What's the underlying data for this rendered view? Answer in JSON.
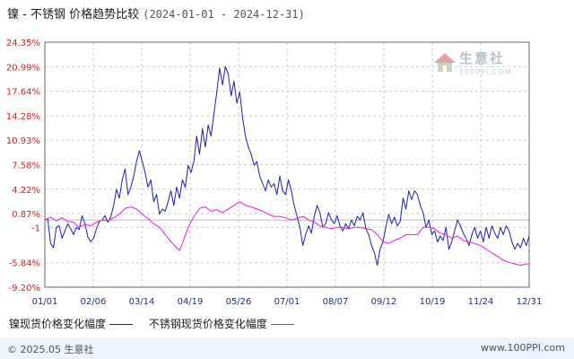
{
  "title": {
    "main": "镍 - 不锈钢 价格趋势比较",
    "range": "(2024-01-01 - 2024-12-31)"
  },
  "footer": {
    "copyright": "© 2025.05 生意社",
    "url": "www.100PPI.com"
  },
  "watermark": {
    "name": "生意社",
    "sub": "100PPI.COM"
  },
  "colors": {
    "nickel": "#1e1eaa",
    "stainless": "#e020e0",
    "grid": "#c9c9c9",
    "axis": "#666666"
  },
  "chart_data": {
    "type": "line",
    "x_ticks": [
      "01/01",
      "02/06",
      "03/14",
      "04/19",
      "05/26",
      "07/01",
      "08/07",
      "09/12",
      "10/19",
      "11/24",
      "12/31"
    ],
    "y_ticks": [
      "24.35%",
      "20.99%",
      "17.64%",
      "14.28%",
      "10.93%",
      "7.58%",
      "4.22%",
      "0.87%",
      "-1",
      "-5.84%",
      "-9.20%"
    ],
    "y_tick_values": [
      24.35,
      20.99,
      17.64,
      14.28,
      10.93,
      7.58,
      4.22,
      0.87,
      -1.0,
      -5.84,
      -9.2
    ],
    "ylim": [
      -9.2,
      24.35
    ],
    "grid": true,
    "legend_position": "bottom-left",
    "series": [
      {
        "name": "镍现货价格变化幅度",
        "color": "#1e1eaa",
        "points": [
          [
            0,
            0
          ],
          [
            3,
            0.2
          ],
          [
            6,
            -3.2
          ],
          [
            9,
            -3.8
          ],
          [
            12,
            -1.0
          ],
          [
            15,
            -0.8
          ],
          [
            18,
            -2.5
          ],
          [
            21,
            -1.5
          ],
          [
            24,
            -0.5
          ],
          [
            27,
            -1.2
          ],
          [
            30,
            -2.0
          ],
          [
            33,
            -1.0
          ],
          [
            36,
            -1.3
          ],
          [
            39,
            0.6
          ],
          [
            42,
            -0.5
          ],
          [
            45,
            -2.3
          ],
          [
            48,
            -3.0
          ],
          [
            51,
            -2.5
          ],
          [
            54,
            -1.2
          ],
          [
            57,
            -0.2
          ],
          [
            60,
            0.0
          ],
          [
            63,
            0.6
          ],
          [
            66,
            -0.3
          ],
          [
            69,
            0.4
          ],
          [
            72,
            2.0
          ],
          [
            75,
            4.2
          ],
          [
            78,
            3.0
          ],
          [
            81,
            5.5
          ],
          [
            84,
            7.0
          ],
          [
            87,
            3.5
          ],
          [
            90,
            4.5
          ],
          [
            93,
            6.0
          ],
          [
            96,
            8.0
          ],
          [
            99,
            9.5
          ],
          [
            102,
            8.0
          ],
          [
            105,
            6.5
          ],
          [
            108,
            4.5
          ],
          [
            111,
            5.5
          ],
          [
            114,
            2.5
          ],
          [
            117,
            3.5
          ],
          [
            120,
            0.8
          ],
          [
            123,
            1.5
          ],
          [
            126,
            1.2
          ],
          [
            129,
            2.5
          ],
          [
            132,
            4.0
          ],
          [
            135,
            2.0
          ],
          [
            138,
            4.5
          ],
          [
            141,
            3.0
          ],
          [
            144,
            5.5
          ],
          [
            147,
            4.5
          ],
          [
            150,
            7.5
          ],
          [
            153,
            6.5
          ],
          [
            156,
            8.0
          ],
          [
            159,
            11.5
          ],
          [
            162,
            9.0
          ],
          [
            165,
            12.5
          ],
          [
            168,
            10.0
          ],
          [
            171,
            13.0
          ],
          [
            174,
            11.5
          ],
          [
            177,
            14.5
          ],
          [
            180,
            17.5
          ],
          [
            183,
            20.8
          ],
          [
            186,
            18.5
          ],
          [
            189,
            21.0
          ],
          [
            192,
            20.0
          ],
          [
            195,
            17.0
          ],
          [
            198,
            19.0
          ],
          [
            201,
            16.0
          ],
          [
            204,
            17.5
          ],
          [
            207,
            14.0
          ],
          [
            210,
            11.5
          ],
          [
            213,
            10.0
          ],
          [
            216,
            9.0
          ],
          [
            219,
            7.5
          ],
          [
            222,
            8.0
          ],
          [
            225,
            6.0
          ],
          [
            228,
            5.0
          ],
          [
            231,
            4.0
          ],
          [
            234,
            5.5
          ],
          [
            237,
            4.5
          ],
          [
            240,
            5.0
          ],
          [
            243,
            3.5
          ],
          [
            246,
            6.0
          ],
          [
            249,
            4.0
          ],
          [
            252,
            3.5
          ],
          [
            255,
            5.5
          ],
          [
            258,
            4.0
          ],
          [
            261,
            2.0
          ],
          [
            264,
            0.5
          ],
          [
            267,
            -1.0
          ],
          [
            270,
            -3.5
          ],
          [
            273,
            -2.0
          ],
          [
            276,
            -0.8
          ],
          [
            279,
            -1.8
          ],
          [
            282,
            0.5
          ],
          [
            285,
            2.0
          ],
          [
            288,
            1.0
          ],
          [
            291,
            -1.0
          ],
          [
            294,
            -0.5
          ],
          [
            297,
            1.0
          ],
          [
            300,
            0.0
          ],
          [
            303,
            -0.5
          ],
          [
            306,
            0.6
          ],
          [
            309,
            -0.8
          ],
          [
            312,
            -1.5
          ],
          [
            315,
            -0.5
          ],
          [
            318,
            -1.2
          ],
          [
            321,
            0.0
          ],
          [
            324,
            -0.8
          ],
          [
            327,
            0.5
          ],
          [
            330,
            0.0
          ],
          [
            333,
            1.0
          ],
          [
            336,
            -1.2
          ],
          [
            339,
            -2.0
          ],
          [
            342,
            -3.5
          ],
          [
            345,
            -4.5
          ],
          [
            348,
            -6.2
          ],
          [
            351,
            -4.0
          ],
          [
            354,
            -3.0
          ],
          [
            357,
            -1.0
          ],
          [
            360,
            0.8
          ],
          [
            363,
            -0.5
          ],
          [
            366,
            0.4
          ],
          [
            369,
            -0.8
          ],
          [
            372,
            -0.2
          ],
          [
            375,
            3.0
          ],
          [
            378,
            1.5
          ],
          [
            381,
            4.0
          ],
          [
            384,
            2.8
          ],
          [
            387,
            4.0
          ],
          [
            390,
            3.5
          ],
          [
            393,
            2.0
          ],
          [
            396,
            1.0
          ],
          [
            399,
            -1.0
          ],
          [
            402,
            0.0
          ],
          [
            405,
            -2.0
          ],
          [
            408,
            -1.5
          ],
          [
            411,
            -3.0
          ],
          [
            414,
            -2.2
          ],
          [
            417,
            -2.8
          ],
          [
            420,
            -1.0
          ],
          [
            423,
            -4.0
          ],
          [
            426,
            -3.0
          ],
          [
            429,
            -1.5
          ],
          [
            432,
            0.0
          ],
          [
            435,
            -0.8
          ],
          [
            438,
            -1.8
          ],
          [
            441,
            -2.5
          ],
          [
            444,
            -3.5
          ],
          [
            447,
            -2.0
          ],
          [
            450,
            -1.0
          ],
          [
            453,
            -2.5
          ],
          [
            456,
            -1.5
          ],
          [
            459,
            -3.0
          ],
          [
            462,
            -1.0
          ],
          [
            465,
            -2.5
          ],
          [
            468,
            -0.8
          ],
          [
            471,
            -1.8
          ],
          [
            474,
            -2.5
          ],
          [
            477,
            -1.0
          ],
          [
            480,
            -2.0
          ],
          [
            483,
            -0.8
          ],
          [
            486,
            -1.5
          ],
          [
            489,
            -3.0
          ],
          [
            492,
            -4.0
          ],
          [
            495,
            -3.2
          ],
          [
            498,
            -3.8
          ],
          [
            501,
            -2.5
          ],
          [
            504,
            -3.5
          ],
          [
            507,
            -2.2
          ]
        ]
      },
      {
        "name": "不锈钢现货价格变化幅度",
        "color": "#e020e0",
        "points": [
          [
            0,
            0
          ],
          [
            6,
            0.4
          ],
          [
            12,
            -0.1
          ],
          [
            18,
            0.3
          ],
          [
            24,
            -0.2
          ],
          [
            30,
            -0.3
          ],
          [
            36,
            -1.0
          ],
          [
            42,
            -0.6
          ],
          [
            48,
            -0.8
          ],
          [
            54,
            -0.3
          ],
          [
            60,
            0.0
          ],
          [
            66,
            -0.1
          ],
          [
            72,
            0.3
          ],
          [
            78,
            0.8
          ],
          [
            84,
            1.6
          ],
          [
            90,
            1.8
          ],
          [
            96,
            1.5
          ],
          [
            102,
            0.8
          ],
          [
            108,
            0.2
          ],
          [
            114,
            -0.5
          ],
          [
            120,
            -1.0
          ],
          [
            126,
            -2.0
          ],
          [
            132,
            -3.0
          ],
          [
            138,
            -3.8
          ],
          [
            141,
            -4.2
          ],
          [
            144,
            -3.2
          ],
          [
            150,
            -1.0
          ],
          [
            156,
            0.5
          ],
          [
            162,
            1.6
          ],
          [
            168,
            1.8
          ],
          [
            174,
            1.2
          ],
          [
            180,
            1.4
          ],
          [
            186,
            1.0
          ],
          [
            192,
            1.5
          ],
          [
            198,
            2.0
          ],
          [
            204,
            2.5
          ],
          [
            210,
            2.0
          ],
          [
            216,
            1.8
          ],
          [
            222,
            1.5
          ],
          [
            228,
            1.2
          ],
          [
            234,
            0.8
          ],
          [
            240,
            0.5
          ],
          [
            246,
            0.5
          ],
          [
            252,
            0.3
          ],
          [
            258,
            0.0
          ],
          [
            264,
            0.2
          ],
          [
            270,
            0.5
          ],
          [
            276,
            0.0
          ],
          [
            282,
            -0.3
          ],
          [
            288,
            -0.8
          ],
          [
            294,
            -1.0
          ],
          [
            300,
            -1.2
          ],
          [
            306,
            -1.0
          ],
          [
            312,
            -1.0
          ],
          [
            318,
            -1.2
          ],
          [
            324,
            -1.0
          ],
          [
            330,
            -1.0
          ],
          [
            336,
            -1.2
          ],
          [
            342,
            -1.3
          ],
          [
            348,
            -2.0
          ],
          [
            354,
            -3.0
          ],
          [
            360,
            -3.2
          ],
          [
            366,
            -2.8
          ],
          [
            372,
            -2.5
          ],
          [
            378,
            -2.0
          ],
          [
            384,
            -2.0
          ],
          [
            390,
            -2.0
          ],
          [
            396,
            -1.0
          ],
          [
            402,
            -1.0
          ],
          [
            408,
            -1.2
          ],
          [
            414,
            -1.8
          ],
          [
            420,
            -2.0
          ],
          [
            426,
            -2.5
          ],
          [
            432,
            -2.2
          ],
          [
            438,
            -2.8
          ],
          [
            444,
            -3.0
          ],
          [
            450,
            -3.2
          ],
          [
            456,
            -3.5
          ],
          [
            462,
            -4.0
          ],
          [
            468,
            -4.5
          ],
          [
            474,
            -5.0
          ],
          [
            480,
            -5.5
          ],
          [
            486,
            -5.8
          ],
          [
            492,
            -6.0
          ],
          [
            498,
            -6.2
          ],
          [
            504,
            -6.0
          ],
          [
            507,
            -6.0
          ]
        ]
      }
    ]
  }
}
